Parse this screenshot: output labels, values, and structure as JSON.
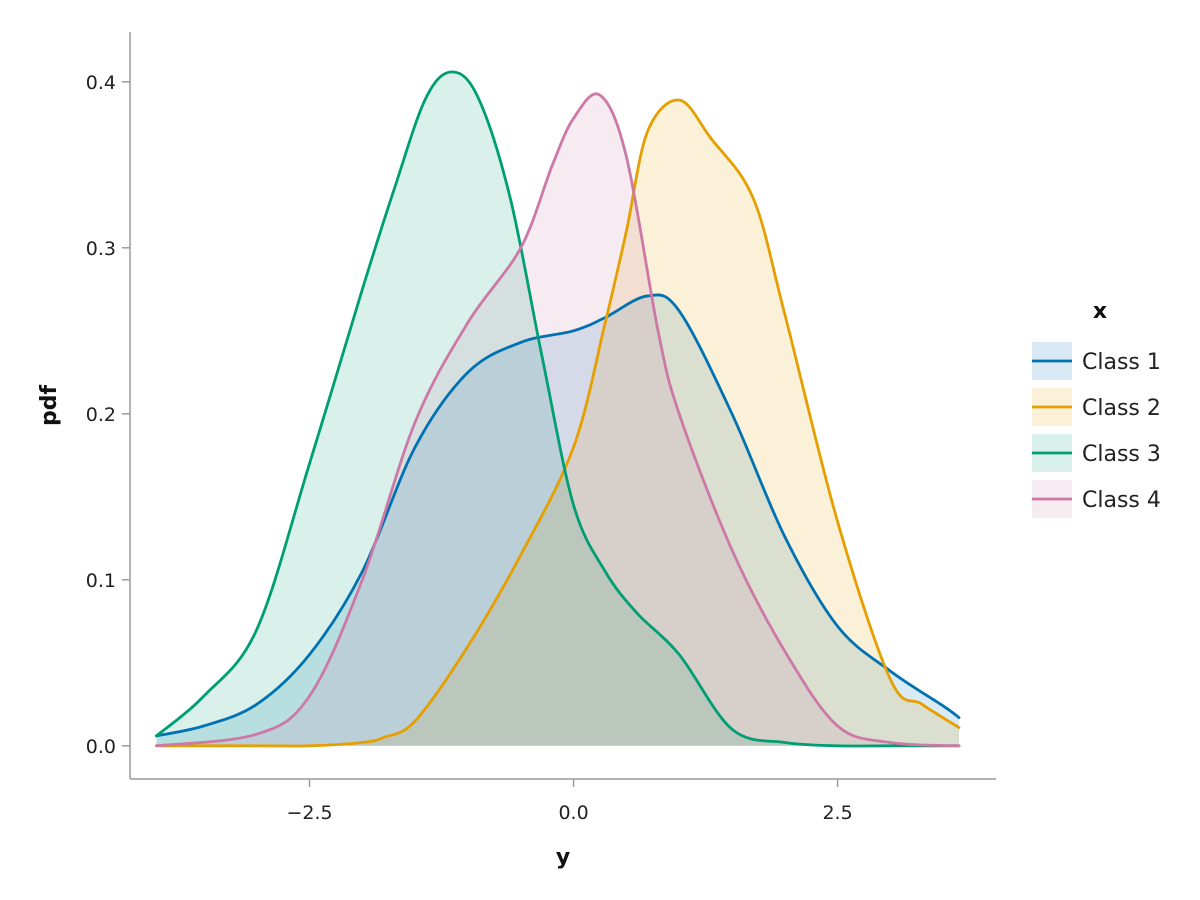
{
  "chart_data": {
    "type": "area",
    "title": "",
    "xlabel": "y",
    "ylabel": "pdf",
    "xlim": [
      -4.2,
      4.0
    ],
    "ylim": [
      -0.02,
      0.43
    ],
    "xticks": [
      {
        "value": -2.5,
        "label": "−2.5"
      },
      {
        "value": 0.0,
        "label": "0.0"
      },
      {
        "value": 2.5,
        "label": "2.5"
      }
    ],
    "yticks": [
      {
        "value": 0.0,
        "label": "0.0"
      },
      {
        "value": 0.1,
        "label": "0.1"
      },
      {
        "value": 0.2,
        "label": "0.2"
      },
      {
        "value": 0.3,
        "label": "0.3"
      },
      {
        "value": 0.4,
        "label": "0.4"
      }
    ],
    "grid": false,
    "legend": {
      "title": "x",
      "placement": "right"
    },
    "series": [
      {
        "name": "Class 1",
        "color": "#0072B2",
        "fill_opacity": 0.15,
        "x": [
          -3.95,
          -3.5,
          -3.0,
          -2.5,
          -2.0,
          -1.5,
          -1.0,
          -0.5,
          0.0,
          0.3,
          0.7,
          1.0,
          1.5,
          2.0,
          2.5,
          3.0,
          3.5,
          3.65
        ],
        "y": [
          0.006,
          0.012,
          0.025,
          0.055,
          0.105,
          0.18,
          0.225,
          0.243,
          0.25,
          0.258,
          0.271,
          0.262,
          0.2,
          0.126,
          0.072,
          0.045,
          0.024,
          0.017
        ]
      },
      {
        "name": "Class 2",
        "color": "#E69F00",
        "fill_opacity": 0.15,
        "x": [
          -3.95,
          -3.0,
          -2.5,
          -2.0,
          -1.8,
          -1.5,
          -1.0,
          -0.5,
          0.0,
          0.3,
          0.5,
          0.7,
          1.0,
          1.3,
          1.7,
          2.0,
          2.5,
          3.0,
          3.3,
          3.65
        ],
        "y": [
          0.0,
          0.0,
          0.0,
          0.002,
          0.005,
          0.015,
          0.06,
          0.115,
          0.18,
          0.255,
          0.31,
          0.37,
          0.389,
          0.366,
          0.33,
          0.26,
          0.135,
          0.04,
          0.025,
          0.011
        ]
      },
      {
        "name": "Class 3",
        "color": "#009E73",
        "fill_opacity": 0.15,
        "x": [
          -3.95,
          -3.5,
          -3.0,
          -2.5,
          -2.0,
          -1.7,
          -1.4,
          -1.15,
          -0.9,
          -0.6,
          -0.3,
          0.0,
          0.3,
          0.6,
          1.0,
          1.5,
          2.0,
          2.5,
          3.0,
          3.65
        ],
        "y": [
          0.006,
          0.03,
          0.07,
          0.17,
          0.275,
          0.335,
          0.39,
          0.406,
          0.39,
          0.33,
          0.235,
          0.145,
          0.105,
          0.08,
          0.055,
          0.01,
          0.002,
          0.0,
          0.0,
          0.0
        ]
      },
      {
        "name": "Class 4",
        "color": "#CC79A7",
        "fill_opacity": 0.15,
        "x": [
          -3.95,
          -3.0,
          -2.5,
          -2.0,
          -1.5,
          -1.0,
          -0.5,
          -0.2,
          0.0,
          0.25,
          0.5,
          0.8,
          1.0,
          1.5,
          2.0,
          2.5,
          3.0,
          3.65
        ],
        "y": [
          0.0,
          0.007,
          0.03,
          0.1,
          0.195,
          0.255,
          0.3,
          0.35,
          0.378,
          0.392,
          0.355,
          0.25,
          0.2,
          0.118,
          0.057,
          0.012,
          0.002,
          0.0
        ]
      }
    ]
  }
}
